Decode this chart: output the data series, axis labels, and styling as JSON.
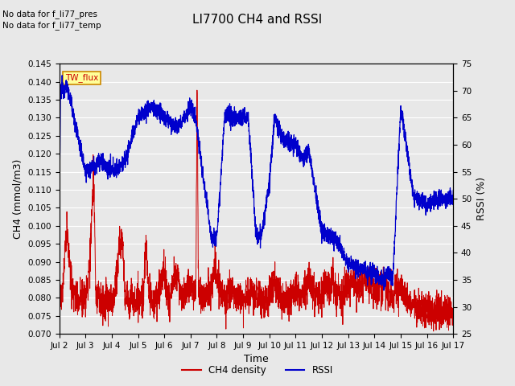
{
  "title": "LI7700 CH4 and RSSI",
  "xlabel": "Time",
  "ylabel_left": "CH4 (mmol/m3)",
  "ylabel_right": "RSSI (%)",
  "ylim_left": [
    0.07,
    0.145
  ],
  "ylim_right": [
    25,
    75
  ],
  "yticks_left": [
    0.07,
    0.075,
    0.08,
    0.085,
    0.09,
    0.095,
    0.1,
    0.105,
    0.11,
    0.115,
    0.12,
    0.125,
    0.13,
    0.135,
    0.14,
    0.145
  ],
  "yticks_right": [
    25,
    30,
    35,
    40,
    45,
    50,
    55,
    60,
    65,
    70,
    75
  ],
  "xtick_labels": [
    "Jul 2",
    "Jul 3",
    "Jul 4",
    "Jul 5",
    "Jul 6",
    "Jul 7",
    "Jul 8",
    "Jul 9",
    "Jul 10",
    "Jul 11",
    "Jul 12",
    "Jul 13",
    "Jul 14",
    "Jul 15",
    "Jul 16",
    "Jul 17"
  ],
  "color_ch4": "#cc0000",
  "color_rssi": "#0000cc",
  "text_nodata1": "No data for f_li77_pres",
  "text_nodata2": "No data for f_li77_temp",
  "tw_flux_label": "TW_flux",
  "tw_flux_bg": "#ffff99",
  "tw_flux_border": "#cc8800",
  "bg_color": "#e8e8e8",
  "grid_color": "#ffffff",
  "legend_labels": [
    "CH4 density",
    "RSSI"
  ],
  "legend_colors": [
    "#cc0000",
    "#0000cc"
  ]
}
